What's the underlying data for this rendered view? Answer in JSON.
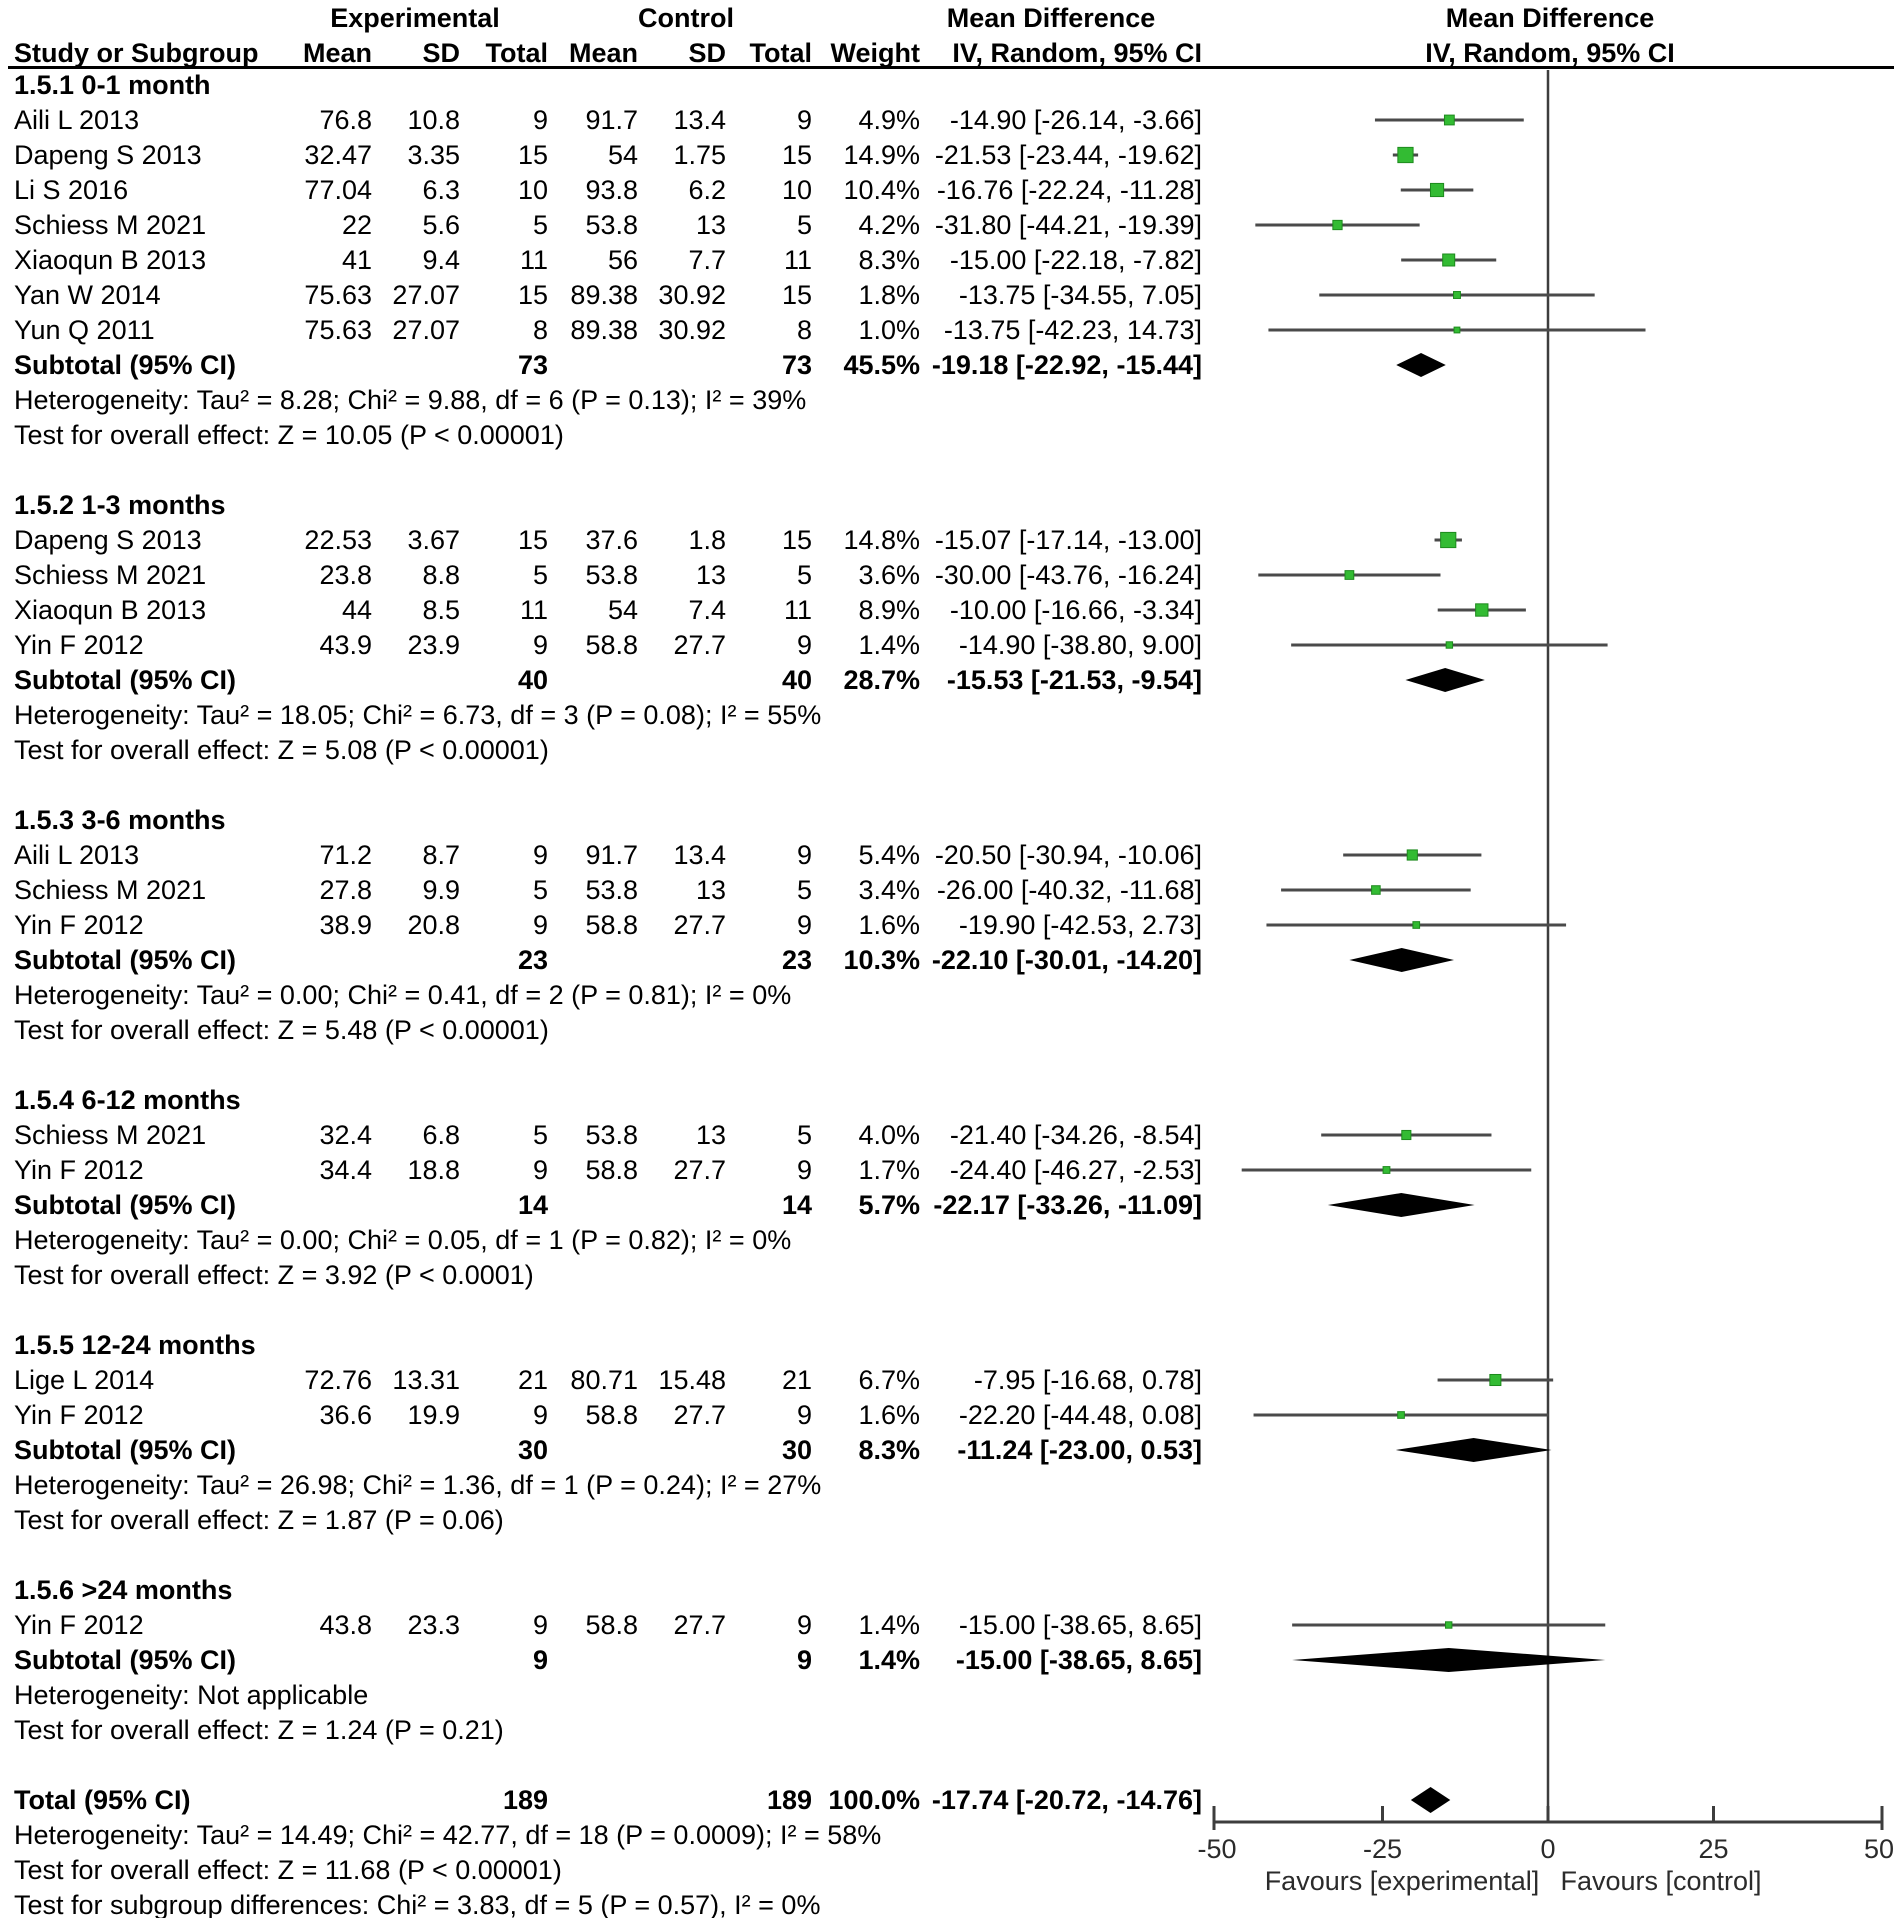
{
  "header": {
    "study_col": "Study or Subgroup",
    "experimental_group": "Experimental",
    "control_group": "Control",
    "mean_label": "Mean",
    "sd_label": "SD",
    "total_label": "Total",
    "weight_label": "Weight",
    "md_text_col_title": "Mean Difference",
    "md_text_col_sub": "IV, Random, 95% CI",
    "md_plot_col_title": "Mean Difference",
    "md_plot_col_sub": "IV, Random, 95% CI"
  },
  "sections": [
    {
      "title": "1.5.1 0-1 month",
      "studies": [
        {
          "name": "Aili L  2013",
          "mean_e": "76.8",
          "sd_e": "10.8",
          "total_e": "9",
          "mean_c": "91.7",
          "sd_c": "13.4",
          "total_c": "9",
          "weight": "4.9%",
          "ci": "-14.90 [-26.14, -3.66]"
        },
        {
          "name": "Dapeng S  2013",
          "mean_e": "32.47",
          "sd_e": "3.35",
          "total_e": "15",
          "mean_c": "54",
          "sd_c": "1.75",
          "total_c": "15",
          "weight": "14.9%",
          "ci": "-21.53 [-23.44, -19.62]"
        },
        {
          "name": "Li S 2016",
          "mean_e": "77.04",
          "sd_e": "6.3",
          "total_e": "10",
          "mean_c": "93.8",
          "sd_c": "6.2",
          "total_c": "10",
          "weight": "10.4%",
          "ci": "-16.76 [-22.24, -11.28]"
        },
        {
          "name": "Schiess M 2021",
          "mean_e": "22",
          "sd_e": "5.6",
          "total_e": "5",
          "mean_c": "53.8",
          "sd_c": "13",
          "total_c": "5",
          "weight": "4.2%",
          "ci": "-31.80 [-44.21, -19.39]"
        },
        {
          "name": "Xiaoqun B  2013",
          "mean_e": "41",
          "sd_e": "9.4",
          "total_e": "11",
          "mean_c": "56",
          "sd_c": "7.7",
          "total_c": "11",
          "weight": "8.3%",
          "ci": "-15.00 [-22.18, -7.82]"
        },
        {
          "name": "Yan W 2014",
          "mean_e": "75.63",
          "sd_e": "27.07",
          "total_e": "15",
          "mean_c": "89.38",
          "sd_c": "30.92",
          "total_c": "15",
          "weight": "1.8%",
          "ci": "-13.75 [-34.55, 7.05]"
        },
        {
          "name": "Yun Q 2011",
          "mean_e": "75.63",
          "sd_e": "27.07",
          "total_e": "8",
          "mean_c": "89.38",
          "sd_c": "30.92",
          "total_c": "8",
          "weight": "1.0%",
          "ci": "-13.75 [-42.23, 14.73]"
        }
      ],
      "subtotal": {
        "label": "Subtotal (95% CI)",
        "total_e": "73",
        "total_c": "73",
        "weight": "45.5%",
        "ci": "-19.18 [-22.92, -15.44]"
      },
      "heterogeneity": "Heterogeneity: Tau² = 8.28; Chi² = 9.88, df = 6 (P = 0.13); I² = 39%",
      "test": "Test for overall effect: Z = 10.05 (P < 0.00001)"
    },
    {
      "title": "1.5.2 1-3 months",
      "studies": [
        {
          "name": "Dapeng S  2013",
          "mean_e": "22.53",
          "sd_e": "3.67",
          "total_e": "15",
          "mean_c": "37.6",
          "sd_c": "1.8",
          "total_c": "15",
          "weight": "14.8%",
          "ci": "-15.07 [-17.14, -13.00]"
        },
        {
          "name": "Schiess M 2021",
          "mean_e": "23.8",
          "sd_e": "8.8",
          "total_e": "5",
          "mean_c": "53.8",
          "sd_c": "13",
          "total_c": "5",
          "weight": "3.6%",
          "ci": "-30.00 [-43.76, -16.24]"
        },
        {
          "name": "Xiaoqun B  2013",
          "mean_e": "44",
          "sd_e": "8.5",
          "total_e": "11",
          "mean_c": "54",
          "sd_c": "7.4",
          "total_c": "11",
          "weight": "8.9%",
          "ci": "-10.00 [-16.66, -3.34]"
        },
        {
          "name": "Yin F 2012",
          "mean_e": "43.9",
          "sd_e": "23.9",
          "total_e": "9",
          "mean_c": "58.8",
          "sd_c": "27.7",
          "total_c": "9",
          "weight": "1.4%",
          "ci": "-14.90 [-38.80, 9.00]"
        }
      ],
      "subtotal": {
        "label": "Subtotal (95% CI)",
        "total_e": "40",
        "total_c": "40",
        "weight": "28.7%",
        "ci": "-15.53 [-21.53, -9.54]"
      },
      "heterogeneity": "Heterogeneity: Tau² = 18.05; Chi² = 6.73, df = 3 (P = 0.08); I² = 55%",
      "test": "Test for overall effect: Z = 5.08 (P < 0.00001)"
    },
    {
      "title": "1.5.3 3-6 months",
      "studies": [
        {
          "name": "Aili L  2013",
          "mean_e": "71.2",
          "sd_e": "8.7",
          "total_e": "9",
          "mean_c": "91.7",
          "sd_c": "13.4",
          "total_c": "9",
          "weight": "5.4%",
          "ci": "-20.50 [-30.94, -10.06]"
        },
        {
          "name": "Schiess M 2021",
          "mean_e": "27.8",
          "sd_e": "9.9",
          "total_e": "5",
          "mean_c": "53.8",
          "sd_c": "13",
          "total_c": "5",
          "weight": "3.4%",
          "ci": "-26.00 [-40.32, -11.68]"
        },
        {
          "name": "Yin F 2012",
          "mean_e": "38.9",
          "sd_e": "20.8",
          "total_e": "9",
          "mean_c": "58.8",
          "sd_c": "27.7",
          "total_c": "9",
          "weight": "1.6%",
          "ci": "-19.90 [-42.53, 2.73]"
        }
      ],
      "subtotal": {
        "label": "Subtotal (95% CI)",
        "total_e": "23",
        "total_c": "23",
        "weight": "10.3%",
        "ci": "-22.10 [-30.01, -14.20]"
      },
      "heterogeneity": "Heterogeneity: Tau² = 0.00; Chi² = 0.41, df = 2 (P = 0.81); I² = 0%",
      "test": "Test for overall effect: Z = 5.48 (P < 0.00001)"
    },
    {
      "title": "1.5.4 6-12 months",
      "studies": [
        {
          "name": "Schiess M 2021",
          "mean_e": "32.4",
          "sd_e": "6.8",
          "total_e": "5",
          "mean_c": "53.8",
          "sd_c": "13",
          "total_c": "5",
          "weight": "4.0%",
          "ci": "-21.40 [-34.26, -8.54]"
        },
        {
          "name": "Yin F 2012",
          "mean_e": "34.4",
          "sd_e": "18.8",
          "total_e": "9",
          "mean_c": "58.8",
          "sd_c": "27.7",
          "total_c": "9",
          "weight": "1.7%",
          "ci": "-24.40 [-46.27, -2.53]"
        }
      ],
      "subtotal": {
        "label": "Subtotal (95% CI)",
        "total_e": "14",
        "total_c": "14",
        "weight": "5.7%",
        "ci": "-22.17 [-33.26, -11.09]"
      },
      "heterogeneity": "Heterogeneity: Tau² = 0.00; Chi² = 0.05, df = 1 (P = 0.82); I² = 0%",
      "test": "Test for overall effect: Z = 3.92 (P < 0.0001)"
    },
    {
      "title": "1.5.5 12-24 months",
      "studies": [
        {
          "name": "Lige L 2014",
          "mean_e": "72.76",
          "sd_e": "13.31",
          "total_e": "21",
          "mean_c": "80.71",
          "sd_c": "15.48",
          "total_c": "21",
          "weight": "6.7%",
          "ci": "-7.95 [-16.68, 0.78]"
        },
        {
          "name": "Yin F 2012",
          "mean_e": "36.6",
          "sd_e": "19.9",
          "total_e": "9",
          "mean_c": "58.8",
          "sd_c": "27.7",
          "total_c": "9",
          "weight": "1.6%",
          "ci": "-22.20 [-44.48, 0.08]"
        }
      ],
      "subtotal": {
        "label": "Subtotal (95% CI)",
        "total_e": "30",
        "total_c": "30",
        "weight": "8.3%",
        "ci": "-11.24 [-23.00, 0.53]"
      },
      "heterogeneity": "Heterogeneity: Tau² = 26.98; Chi² = 1.36, df = 1 (P = 0.24); I² = 27%",
      "test": "Test for overall effect: Z = 1.87 (P = 0.06)"
    },
    {
      "title": "1.5.6 >24 months",
      "studies": [
        {
          "name": "Yin F 2012",
          "mean_e": "43.8",
          "sd_e": "23.3",
          "total_e": "9",
          "mean_c": "58.8",
          "sd_c": "27.7",
          "total_c": "9",
          "weight": "1.4%",
          "ci": "-15.00 [-38.65, 8.65]"
        }
      ],
      "subtotal": {
        "label": "Subtotal (95% CI)",
        "total_e": "9",
        "total_c": "9",
        "weight": "1.4%",
        "ci": "-15.00 [-38.65, 8.65]"
      },
      "heterogeneity": "Heterogeneity: Not applicable",
      "test": "Test for overall effect: Z = 1.24 (P = 0.21)"
    }
  ],
  "total": {
    "label": "Total (95% CI)",
    "total_e": "189",
    "total_c": "189",
    "weight": "100.0%",
    "ci": "-17.74 [-20.72, -14.76]",
    "heterogeneity": "Heterogeneity: Tau² = 14.49; Chi² = 42.77, df = 18 (P = 0.0009); I² = 58%",
    "test": "Test for overall effect: Z = 11.68 (P < 0.00001)",
    "subgroup_test": "Test for subgroup differences: Chi² = 3.83, df = 5 (P = 0.57), I² = 0%"
  },
  "axis": {
    "ticks": [
      "-50",
      "-25",
      "0",
      "25",
      "50"
    ],
    "favours_left": "Favours [experimental]",
    "favours_right": "Favours [control]"
  },
  "colors": {
    "marker_green": "#33bb33",
    "marker_green_edge": "#1d8a1d",
    "ci_line": "#4a4a4a",
    "diamond": "#000000",
    "axis": "#3d3d3d"
  },
  "chart_data": {
    "type": "scatter",
    "title": "Forest plot of Mean Difference (IV, Random, 95% CI)",
    "effect_measure": "Mean Difference IV, Random, 95% CI",
    "x_axis": {
      "range": [
        -50,
        50
      ],
      "ticks": [
        -50,
        -25,
        0,
        25,
        50
      ],
      "label_left": "Favours [experimental]",
      "label_right": "Favours [control]"
    },
    "subgroups": [
      {
        "name": "1.5.1 0-1 month",
        "studies": [
          {
            "label": "Aili L 2013",
            "est": -14.9,
            "lo": -26.14,
            "hi": -3.66,
            "weight_pct": 4.9
          },
          {
            "label": "Dapeng S 2013",
            "est": -21.53,
            "lo": -23.44,
            "hi": -19.62,
            "weight_pct": 14.9
          },
          {
            "label": "Li S 2016",
            "est": -16.76,
            "lo": -22.24,
            "hi": -11.28,
            "weight_pct": 10.4
          },
          {
            "label": "Schiess M 2021",
            "est": -31.8,
            "lo": -44.21,
            "hi": -19.39,
            "weight_pct": 4.2
          },
          {
            "label": "Xiaoqun B 2013",
            "est": -15.0,
            "lo": -22.18,
            "hi": -7.82,
            "weight_pct": 8.3
          },
          {
            "label": "Yan W 2014",
            "est": -13.75,
            "lo": -34.55,
            "hi": 7.05,
            "weight_pct": 1.8
          },
          {
            "label": "Yun Q 2011",
            "est": -13.75,
            "lo": -42.23,
            "hi": 14.73,
            "weight_pct": 1.0
          }
        ],
        "subtotal": {
          "est": -19.18,
          "lo": -22.92,
          "hi": -15.44,
          "weight_pct": 45.5
        }
      },
      {
        "name": "1.5.2 1-3 months",
        "studies": [
          {
            "label": "Dapeng S 2013",
            "est": -15.07,
            "lo": -17.14,
            "hi": -13.0,
            "weight_pct": 14.8
          },
          {
            "label": "Schiess M 2021",
            "est": -30.0,
            "lo": -43.76,
            "hi": -16.24,
            "weight_pct": 3.6
          },
          {
            "label": "Xiaoqun B 2013",
            "est": -10.0,
            "lo": -16.66,
            "hi": -3.34,
            "weight_pct": 8.9
          },
          {
            "label": "Yin F 2012",
            "est": -14.9,
            "lo": -38.8,
            "hi": 9.0,
            "weight_pct": 1.4
          }
        ],
        "subtotal": {
          "est": -15.53,
          "lo": -21.53,
          "hi": -9.54,
          "weight_pct": 28.7
        }
      },
      {
        "name": "1.5.3 3-6 months",
        "studies": [
          {
            "label": "Aili L 2013",
            "est": -20.5,
            "lo": -30.94,
            "hi": -10.06,
            "weight_pct": 5.4
          },
          {
            "label": "Schiess M 2021",
            "est": -26.0,
            "lo": -40.32,
            "hi": -11.68,
            "weight_pct": 3.4
          },
          {
            "label": "Yin F 2012",
            "est": -19.9,
            "lo": -42.53,
            "hi": 2.73,
            "weight_pct": 1.6
          }
        ],
        "subtotal": {
          "est": -22.1,
          "lo": -30.01,
          "hi": -14.2,
          "weight_pct": 10.3
        }
      },
      {
        "name": "1.5.4 6-12 months",
        "studies": [
          {
            "label": "Schiess M 2021",
            "est": -21.4,
            "lo": -34.26,
            "hi": -8.54,
            "weight_pct": 4.0
          },
          {
            "label": "Yin F 2012",
            "est": -24.4,
            "lo": -46.27,
            "hi": -2.53,
            "weight_pct": 1.7
          }
        ],
        "subtotal": {
          "est": -22.17,
          "lo": -33.26,
          "hi": -11.09,
          "weight_pct": 5.7
        }
      },
      {
        "name": "1.5.5 12-24 months",
        "studies": [
          {
            "label": "Lige L 2014",
            "est": -7.95,
            "lo": -16.68,
            "hi": 0.78,
            "weight_pct": 6.7
          },
          {
            "label": "Yin F 2012",
            "est": -22.2,
            "lo": -44.48,
            "hi": 0.08,
            "weight_pct": 1.6
          }
        ],
        "subtotal": {
          "est": -11.24,
          "lo": -23.0,
          "hi": 0.53,
          "weight_pct": 8.3
        }
      },
      {
        "name": "1.5.6 >24 months",
        "studies": [
          {
            "label": "Yin F 2012",
            "est": -15.0,
            "lo": -38.65,
            "hi": 8.65,
            "weight_pct": 1.4
          }
        ],
        "subtotal": {
          "est": -15.0,
          "lo": -38.65,
          "hi": 8.65,
          "weight_pct": 1.4
        }
      }
    ],
    "overall": {
      "est": -17.74,
      "lo": -20.72,
      "hi": -14.76,
      "weight_pct": 100.0
    }
  }
}
